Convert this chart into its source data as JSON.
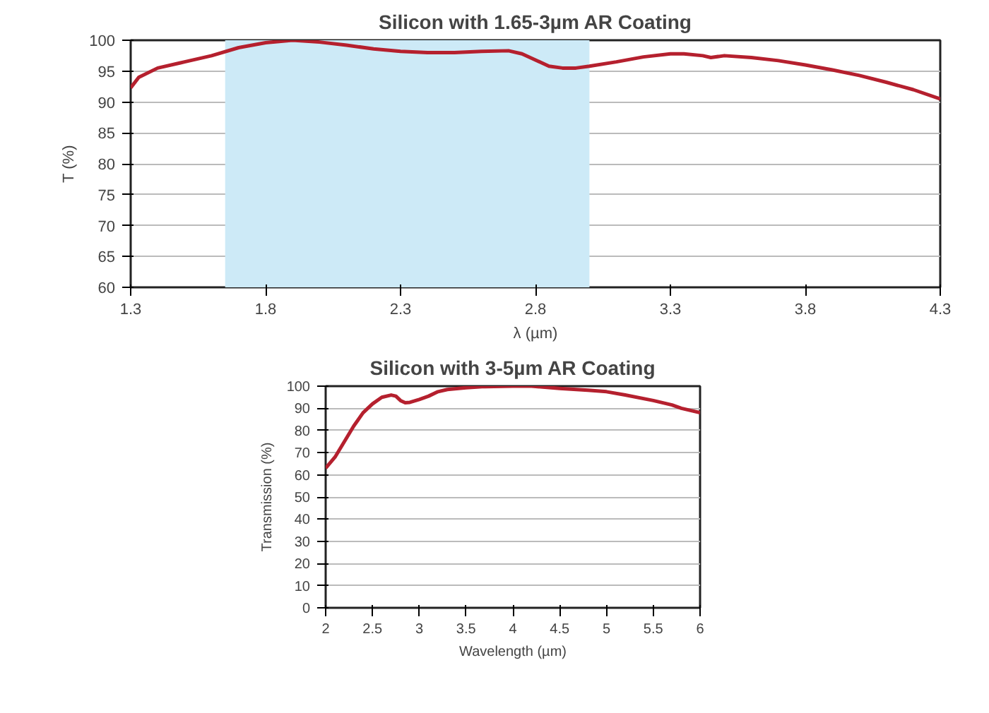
{
  "chart_data": [
    {
      "type": "line",
      "title": "Silicon with 1.65-3µm AR Coating",
      "xlabel": "λ (µm)",
      "ylabel": "T (%)",
      "xlim": [
        1.3,
        4.3
      ],
      "ylim": [
        60,
        100
      ],
      "xticks": [
        1.3,
        1.8,
        2.3,
        2.8,
        3.3,
        3.8,
        4.3
      ],
      "yticks": [
        60,
        65,
        70,
        75,
        80,
        85,
        90,
        95,
        100
      ],
      "grid": "y",
      "marker": "none",
      "line_style": "solid",
      "bands": [
        {
          "axis": "x",
          "from": 1.65,
          "to": 3.0,
          "color": "#cdeaf7"
        }
      ],
      "series": [
        {
          "color": "#b5202e",
          "x": [
            1.3,
            1.33,
            1.4,
            1.5,
            1.6,
            1.7,
            1.8,
            1.9,
            2.0,
            2.1,
            2.2,
            2.3,
            2.4,
            2.5,
            2.6,
            2.7,
            2.75,
            2.8,
            2.85,
            2.9,
            2.95,
            3.0,
            3.1,
            3.2,
            3.3,
            3.35,
            3.42,
            3.45,
            3.5,
            3.6,
            3.7,
            3.8,
            3.9,
            4.0,
            4.1,
            4.2,
            4.3
          ],
          "values": [
            92.3,
            94,
            95.5,
            96.5,
            97.5,
            98.8,
            99.6,
            100,
            99.7,
            99.2,
            98.6,
            98.2,
            98.0,
            98.0,
            98.2,
            98.3,
            97.8,
            96.8,
            95.8,
            95.5,
            95.5,
            95.8,
            96.5,
            97.3,
            97.8,
            97.8,
            97.5,
            97.2,
            97.5,
            97.2,
            96.7,
            96.0,
            95.2,
            94.3,
            93.2,
            92.0,
            90.5
          ]
        }
      ]
    },
    {
      "type": "line",
      "title": "Silicon with 3-5µm AR Coating",
      "xlabel": "Wavelength (µm)",
      "ylabel": "Transmission (%)",
      "xlim": [
        2,
        6
      ],
      "ylim": [
        0,
        100
      ],
      "xticks": [
        2,
        2.5,
        3,
        3.5,
        4,
        4.5,
        5,
        5.5,
        6
      ],
      "yticks": [
        0,
        10,
        20,
        30,
        40,
        50,
        60,
        70,
        80,
        90,
        100
      ],
      "grid": "y",
      "marker": "none",
      "line_style": "solid",
      "series": [
        {
          "color": "#b5202e",
          "x": [
            2.0,
            2.1,
            2.2,
            2.3,
            2.4,
            2.5,
            2.6,
            2.7,
            2.75,
            2.8,
            2.85,
            2.9,
            3.0,
            3.1,
            3.2,
            3.3,
            3.5,
            3.7,
            4.0,
            4.2,
            4.5,
            4.8,
            5.0,
            5.2,
            5.5,
            5.7,
            5.8,
            6.0
          ],
          "values": [
            63,
            68,
            75,
            82,
            88,
            92,
            95,
            96,
            95.5,
            93.5,
            92.5,
            92.7,
            94,
            95.5,
            97.5,
            98.5,
            99.3,
            99.8,
            100,
            100,
            99,
            98.2,
            97.5,
            96,
            93.5,
            91.5,
            90,
            88
          ]
        }
      ]
    }
  ]
}
